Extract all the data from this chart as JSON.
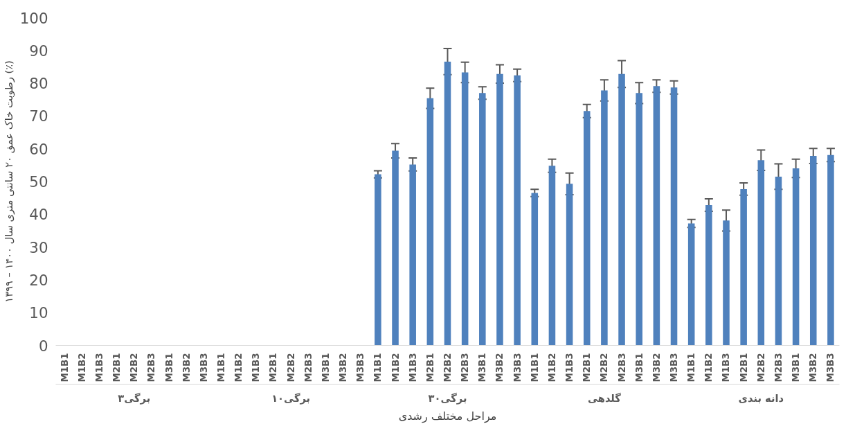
{
  "chart_data": {
    "type": "bar",
    "xlabel": "مراحل مختلف رشدی",
    "ylabel": "رطوبت خاک عمق ۲۰ سانتی متری سال ۱۴۰۰ – ۱۳۹۹ (٪)",
    "categories": [
      "M1B1",
      "M1B2",
      "M1B3",
      "M2B1",
      "M2B2",
      "M2B3",
      "M3B1",
      "M3B2",
      "M3B3",
      "M1B1",
      "M1B2",
      "M1B3",
      "M2B1",
      "M2B2",
      "M2B3",
      "M3B1",
      "M3B2",
      "M3B3",
      "M1B1",
      "M1B2",
      "M1B3",
      "M2B1",
      "M2B2",
      "M2B3",
      "M3B1",
      "M3B2",
      "M3B3",
      "M1B1",
      "M1B2",
      "M1B3",
      "M2B1",
      "M2B2",
      "M2B3",
      "M3B1",
      "M3B2",
      "M3B3",
      "M1B1",
      "M1B2",
      "M1B3",
      "M2B1",
      "M2B2",
      "M2B3",
      "M3B1",
      "M3B2",
      "M3B3"
    ],
    "annotations": [
      "۳برگی",
      "۱۰برگی",
      "۳۰برگی",
      "گلدهی",
      "دانه بندی"
    ],
    "color": "#4f81bd",
    "values": [
      null,
      null,
      null,
      null,
      null,
      null,
      null,
      null,
      null,
      null,
      null,
      null,
      null,
      null,
      null,
      null,
      null,
      null,
      52.2,
      59.4,
      55.2,
      75.4,
      86.6,
      83.3,
      77.0,
      82.8,
      82.4,
      46.5,
      54.8,
      49.3,
      71.5,
      77.8,
      82.8,
      77.0,
      79.1,
      78.7,
      37.2,
      42.8,
      38.1,
      47.7,
      56.5,
      51.5,
      54.0,
      57.8,
      58.1
    ],
    "errors": [
      null,
      null,
      null,
      null,
      null,
      null,
      null,
      null,
      null,
      null,
      null,
      null,
      null,
      null,
      null,
      null,
      null,
      null,
      1.1,
      2.2,
      2.0,
      3.1,
      4.0,
      3.1,
      1.9,
      2.8,
      1.9,
      1.1,
      2.0,
      3.3,
      2.0,
      3.2,
      4.1,
      3.2,
      1.9,
      2.0,
      1.2,
      1.9,
      3.2,
      1.9,
      3.1,
      3.9,
      2.8,
      2.3,
      2.0
    ],
    "ylim": [
      0,
      100
    ],
    "yticks": [
      0,
      10,
      20,
      30,
      40,
      50,
      60,
      70,
      80,
      90,
      100
    ],
    "grid": false
  }
}
